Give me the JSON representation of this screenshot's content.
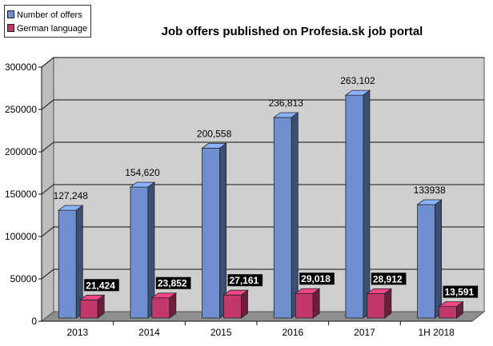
{
  "chart_data": {
    "type": "bar",
    "title": "Job offers published on Profesia.sk job portal",
    "categories": [
      "2013",
      "2014",
      "2015",
      "2016",
      "2017",
      "1H 2018"
    ],
    "series": [
      {
        "name": "Number of offers",
        "values": [
          127248,
          154620,
          200558,
          236813,
          263102,
          133938
        ],
        "labels": [
          "127,248",
          "154,620",
          "200,558",
          "236,813",
          "263,102",
          "133938"
        ],
        "color": "#6f8fd0"
      },
      {
        "name": "German language",
        "values": [
          21424,
          23852,
          27161,
          29018,
          28912,
          13591
        ],
        "labels": [
          "21,424",
          "23,852",
          "27,161",
          "29,018",
          "28,912",
          "13,591"
        ],
        "color": "#c2386d"
      }
    ],
    "yticks": [
      "0",
      "50000",
      "100000",
      "150000",
      "200000",
      "250000",
      "300000"
    ],
    "ylim": [
      0,
      300000
    ],
    "grid": true,
    "legend": "top-left",
    "xlabel": "",
    "ylabel": ""
  }
}
